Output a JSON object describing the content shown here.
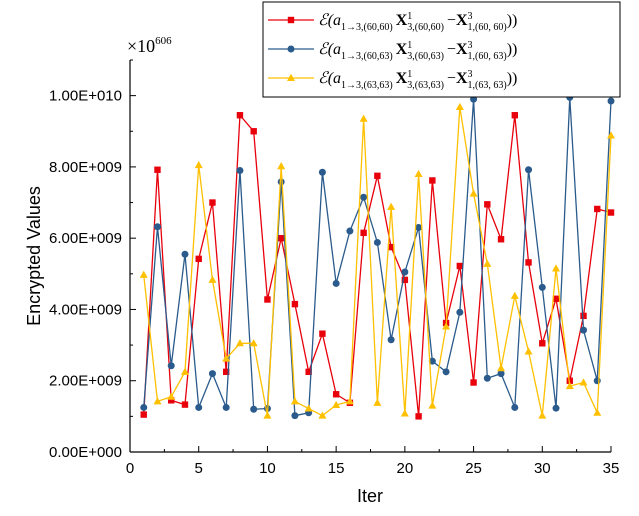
{
  "chart_data": {
    "type": "line",
    "xlabel": "Iter",
    "ylabel": "Encrypted Values",
    "multiplier": {
      "base": "×10",
      "exponent": "606"
    },
    "xlim": [
      0,
      35
    ],
    "ylim": [
      0,
      11000000000
    ],
    "xticks": [
      0,
      5,
      10,
      15,
      20,
      25,
      30,
      35
    ],
    "xtick_labels": [
      "0",
      "5",
      "10",
      "15",
      "20",
      "25",
      "30",
      "35"
    ],
    "yticks": [
      0,
      2000000000,
      4000000000,
      6000000000,
      8000000000,
      10000000000
    ],
    "ytick_labels": [
      "0.00E+000",
      "2.00E+009",
      "4.00E+009",
      "6.00E+009",
      "8.00E+009",
      "1.00E+010"
    ],
    "legend_position": "top-right",
    "x": [
      1,
      2,
      3,
      4,
      5,
      6,
      7,
      8,
      9,
      10,
      11,
      12,
      13,
      14,
      15,
      16,
      17,
      18,
      19,
      20,
      21,
      22,
      23,
      24,
      25,
      26,
      27,
      28,
      29,
      30,
      31,
      32,
      33,
      34,
      35
    ],
    "series": [
      {
        "name": "ℰ(a1→3,(60,60) (X¹3,(60,60) − X³1,(60, 60)))",
        "legend": {
          "prefix": "ℰ(",
          "a": "a",
          "a_sub": "1→3,(60,60)",
          "X1": "X",
          "X1_sup": "1",
          "X1_sub": "3,(60,60)",
          "minus": "−",
          "X3": "X",
          "X3_sup": "3",
          "X3_sub": "1,(60, 60)",
          "suffix": "))"
        },
        "color": "#e8000b",
        "marker": "square",
        "values": [
          1050000000.0,
          7920000000.0,
          1450000000.0,
          1330000000.0,
          5420000000.0,
          7000000000.0,
          2250000000.0,
          9450000000.0,
          9000000000.0,
          4280000000.0,
          6000000000.0,
          4150000000.0,
          2250000000.0,
          3320000000.0,
          1620000000.0,
          1380000000.0,
          6150000000.0,
          7750000000.0,
          5750000000.0,
          4830000000.0,
          1000000000.0,
          7620000000.0,
          3620000000.0,
          5220000000.0,
          1950000000.0,
          6950000000.0,
          5970000000.0,
          9450000000.0,
          5320000000.0,
          3050000000.0,
          4300000000.0,
          2000000000.0,
          3820000000.0,
          6820000000.0,
          6720000000.0
        ]
      },
      {
        "name": "ℰ(a1→3,(60,63) (X¹3,(60,63) − X³1,(60, 63)))",
        "legend": {
          "prefix": "ℰ(",
          "a": "a",
          "a_sub": "1→3,(60,63)",
          "X1": "X",
          "X1_sup": "1",
          "X1_sub": "3,(60,63)",
          "minus": "−",
          "X3": "X",
          "X3_sup": "3",
          "X3_sub": "1,(60, 63)",
          "suffix": "))"
        },
        "color": "#2a5b8c",
        "marker": "circle",
        "values": [
          1250000000.0,
          6320000000.0,
          2420000000.0,
          5550000000.0,
          1250000000.0,
          2200000000.0,
          1250000000.0,
          7900000000.0,
          1200000000.0,
          1220000000.0,
          7580000000.0,
          1020000000.0,
          1100000000.0,
          7850000000.0,
          4730000000.0,
          6200000000.0,
          7150000000.0,
          5880000000.0,
          3150000000.0,
          5050000000.0,
          6300000000.0,
          2550000000.0,
          2250000000.0,
          3920000000.0,
          9900000000.0,
          2070000000.0,
          2200000000.0,
          1250000000.0,
          7920000000.0,
          4620000000.0,
          1230000000.0,
          9950000000.0,
          3420000000.0,
          2000000000.0,
          9850000000.0
        ]
      },
      {
        "name": "ℰ(a1→3,(63,63) (X¹3,(63,63) − X³1,(63, 63)))",
        "legend": {
          "prefix": "ℰ(",
          "a": "a",
          "a_sub": "1→3,(63,63)",
          "X1": "X",
          "X1_sup": "1",
          "X1_sub": "3,(63,63)",
          "minus": "−",
          "X3": "X",
          "X3_sup": "3",
          "X3_sub": "1,(63, 63)",
          "suffix": "))"
        },
        "color": "#ffc000",
        "marker": "triangle",
        "values": [
          4970000000.0,
          1420000000.0,
          1550000000.0,
          2250000000.0,
          8050000000.0,
          4830000000.0,
          2620000000.0,
          3050000000.0,
          3050000000.0,
          1020000000.0,
          8020000000.0,
          1420000000.0,
          1220000000.0,
          1020000000.0,
          1320000000.0,
          1420000000.0,
          9350000000.0,
          1380000000.0,
          6880000000.0,
          1080000000.0,
          7800000000.0,
          1300000000.0,
          3520000000.0,
          9680000000.0,
          7250000000.0,
          5280000000.0,
          2350000000.0,
          4380000000.0,
          2820000000.0,
          1020000000.0,
          5150000000.0,
          1850000000.0,
          1950000000.0,
          1100000000.0,
          8880000000.0
        ]
      }
    ]
  }
}
